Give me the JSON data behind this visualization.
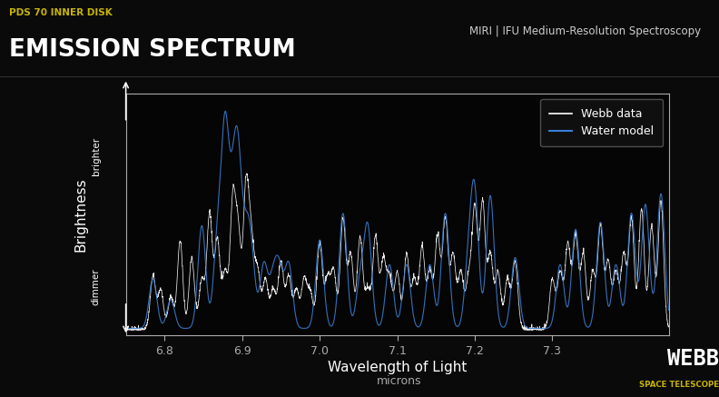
{
  "background_color": "#0a0a0a",
  "plot_bg_color": "#050505",
  "title_line1": "PDS 70 INNER DISK",
  "title_line2": "EMISSION SPECTRUM",
  "subtitle": "MIRI | IFU Medium-Resolution Spectroscopy",
  "title_color": "#ffffff",
  "title_line1_color": "#c8b400",
  "subtitle_color": "#cccccc",
  "xlabel": "Wavelength of Light",
  "xlabel_sub": "microns",
  "ylabel": "Brightness",
  "ylabel_color": "#ffffff",
  "y_annotation_top": "brighter",
  "y_annotation_bottom": "dimmer",
  "xlim": [
    6.75,
    7.45
  ],
  "webb_data_color": "#ffffff",
  "water_model_color": "#3a7fd5",
  "tick_color": "#aaaaaa",
  "axis_color": "#aaaaaa",
  "webb_logo_text": "WEBB",
  "webb_logo_sub": "SPACE TELESCOPE",
  "webb_logo_color": "#ffffff",
  "webb_logo_sub_color": "#c8b400"
}
